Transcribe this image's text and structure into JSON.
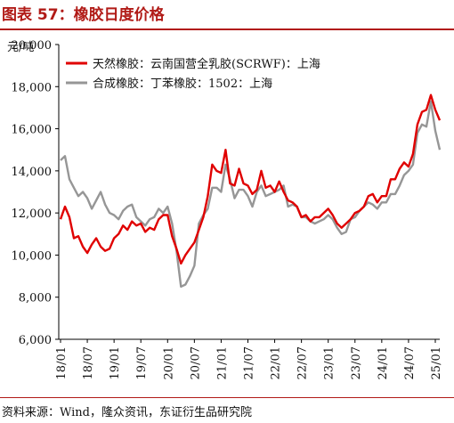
{
  "figure": {
    "title": "图表 57：橡胶日度价格",
    "source": "资料来源：Wind，隆众资讯，东证衍生品研究院"
  },
  "chart_data": {
    "type": "line",
    "ylabel": "元/吨",
    "ylim": [
      6000,
      20000
    ],
    "yticks": [
      6000,
      8000,
      10000,
      12000,
      14000,
      16000,
      18000,
      20000
    ],
    "ytick_labels": [
      "6,000",
      "8,000",
      "10,000",
      "12,000",
      "14,000",
      "16,000",
      "18,000",
      "20,000"
    ],
    "xticks": [
      "18/01",
      "18/07",
      "19/01",
      "19/07",
      "20/01",
      "20/07",
      "21/01",
      "21/07",
      "22/01",
      "22/07",
      "23/01",
      "23/07",
      "24/01",
      "24/07",
      "25/01"
    ],
    "grid": false,
    "legend_position": "top-left",
    "colors": {
      "natural_rubber": "#e00000",
      "synthetic_rubber": "#969696",
      "accent": "#b11b17"
    },
    "series": [
      {
        "name": "天然橡胶：云南国营全乳胶(SCRWF)：上海",
        "x": [
          "18/01",
          "18/02",
          "18/03",
          "18/04",
          "18/05",
          "18/06",
          "18/07",
          "18/08",
          "18/09",
          "18/10",
          "18/11",
          "18/12",
          "19/01",
          "19/02",
          "19/03",
          "19/04",
          "19/05",
          "19/06",
          "19/07",
          "19/08",
          "19/09",
          "19/10",
          "19/11",
          "19/12",
          "20/01",
          "20/02",
          "20/03",
          "20/04",
          "20/05",
          "20/06",
          "20/07",
          "20/08",
          "20/09",
          "20/10",
          "20/11",
          "20/12",
          "21/01",
          "21/02",
          "21/03",
          "21/04",
          "21/05",
          "21/06",
          "21/07",
          "21/08",
          "21/09",
          "21/10",
          "21/11",
          "21/12",
          "22/01",
          "22/02",
          "22/03",
          "22/04",
          "22/05",
          "22/06",
          "22/07",
          "22/08",
          "22/09",
          "22/10",
          "22/11",
          "22/12",
          "23/01",
          "23/02",
          "23/03",
          "23/04",
          "23/05",
          "23/06",
          "23/07",
          "23/08",
          "23/09",
          "23/10",
          "23/11",
          "23/12",
          "24/01",
          "24/02",
          "24/03",
          "24/04",
          "24/05",
          "24/06",
          "24/07",
          "24/08",
          "24/09",
          "24/10",
          "24/11",
          "24/12",
          "25/01",
          "25/02"
        ],
        "values": [
          11700,
          12300,
          11800,
          10800,
          10900,
          10400,
          10100,
          10500,
          10800,
          10400,
          10200,
          10300,
          10800,
          11000,
          11400,
          11200,
          11600,
          11400,
          11500,
          11100,
          11300,
          11200,
          11700,
          11900,
          11900,
          10900,
          10300,
          9600,
          10000,
          10300,
          10600,
          11200,
          11800,
          12800,
          14300,
          14000,
          13900,
          15000,
          13400,
          13300,
          14100,
          13400,
          13300,
          12900,
          13100,
          14000,
          13200,
          13300,
          13000,
          13500,
          13000,
          12600,
          12500,
          12300,
          11800,
          11900,
          11600,
          11800,
          11800,
          12000,
          12200,
          11900,
          11500,
          11300,
          11500,
          11700,
          12000,
          12100,
          12300,
          12800,
          12900,
          12500,
          12800,
          12800,
          13600,
          13600,
          14100,
          14400,
          14200,
          14800,
          16200,
          16800,
          16900,
          17600,
          16900,
          16400
        ]
      },
      {
        "name": "合成橡胶：丁苯橡胶：1502：上海",
        "x": [
          "18/01",
          "18/02",
          "18/03",
          "18/04",
          "18/05",
          "18/06",
          "18/07",
          "18/08",
          "18/09",
          "18/10",
          "18/11",
          "18/12",
          "19/01",
          "19/02",
          "19/03",
          "19/04",
          "19/05",
          "19/06",
          "19/07",
          "19/08",
          "19/09",
          "19/10",
          "19/11",
          "19/12",
          "20/01",
          "20/02",
          "20/03",
          "20/04",
          "20/05",
          "20/06",
          "20/07",
          "20/08",
          "20/09",
          "20/10",
          "20/11",
          "20/12",
          "21/01",
          "21/02",
          "21/03",
          "21/04",
          "21/05",
          "21/06",
          "21/07",
          "21/08",
          "21/09",
          "21/10",
          "21/11",
          "21/12",
          "22/01",
          "22/02",
          "22/03",
          "22/04",
          "22/05",
          "22/06",
          "22/07",
          "22/08",
          "22/09",
          "22/10",
          "22/11",
          "22/12",
          "23/01",
          "23/02",
          "23/03",
          "23/04",
          "23/05",
          "23/06",
          "23/07",
          "23/08",
          "23/09",
          "23/10",
          "23/11",
          "23/12",
          "24/01",
          "24/02",
          "24/03",
          "24/04",
          "24/05",
          "24/06",
          "24/07",
          "24/08",
          "24/09",
          "24/10",
          "24/11",
          "24/12",
          "25/01",
          "25/02"
        ],
        "values": [
          14500,
          14700,
          13600,
          13200,
          12800,
          13000,
          12700,
          12200,
          12600,
          13000,
          12400,
          12000,
          11900,
          11700,
          12100,
          12300,
          12400,
          11800,
          11600,
          11400,
          11700,
          11800,
          12200,
          12000,
          12300,
          11500,
          10200,
          8500,
          8600,
          9000,
          9500,
          11500,
          11900,
          12200,
          13200,
          13200,
          13000,
          14300,
          13600,
          12700,
          13100,
          13100,
          12800,
          12300,
          13000,
          13300,
          12800,
          12900,
          13000,
          13100,
          13300,
          12300,
          12400,
          12300,
          11800,
          11800,
          11600,
          11500,
          11600,
          11700,
          11900,
          11700,
          11300,
          11000,
          11100,
          11700,
          11800,
          12100,
          12300,
          12500,
          12400,
          12200,
          12500,
          12500,
          12900,
          12900,
          13300,
          13800,
          14000,
          14300,
          15800,
          16200,
          16100,
          17300,
          15900,
          15000
        ]
      }
    ]
  }
}
